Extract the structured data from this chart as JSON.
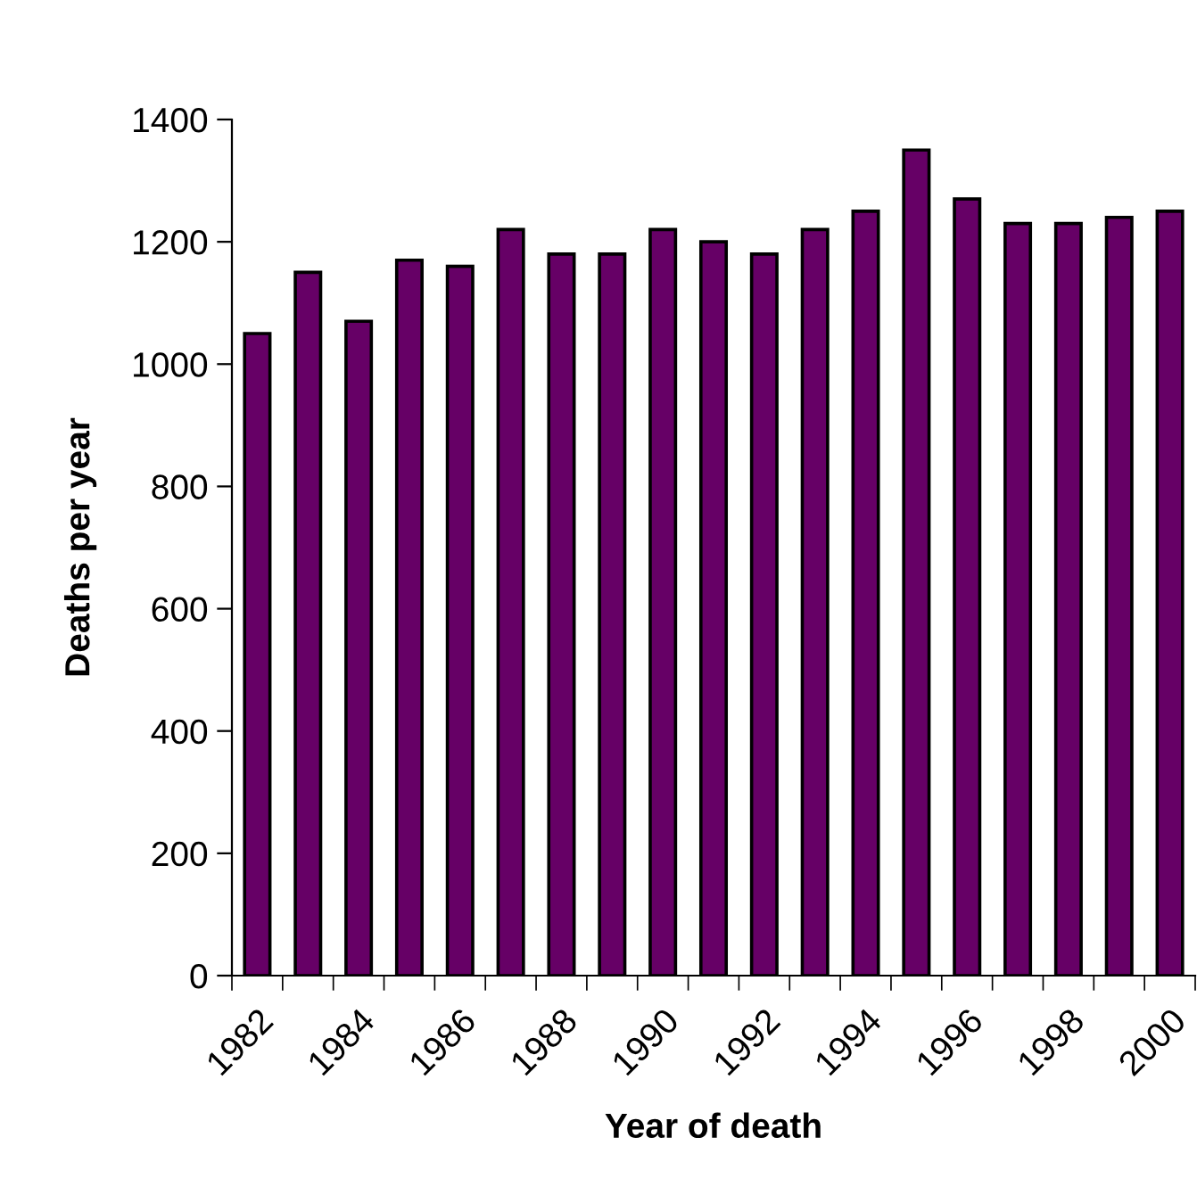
{
  "chart_data": {
    "type": "bar",
    "xlabel": "Year of death",
    "ylabel": "Deaths per year",
    "categories": [
      "1982",
      null,
      "1984",
      null,
      "1986",
      null,
      "1988",
      null,
      "1990",
      null,
      "1992",
      null,
      "1994",
      null,
      "1996",
      null,
      "1998",
      null,
      "2000"
    ],
    "values": [
      1050,
      1150,
      1070,
      1170,
      1160,
      1220,
      1180,
      1180,
      1220,
      1200,
      1180,
      1220,
      1250,
      1350,
      1270,
      1230,
      1230,
      1240,
      1250
    ],
    "color": "#660066",
    "ylim": [
      0,
      1400
    ],
    "yticks": [
      0,
      200,
      400,
      600,
      800,
      1000,
      1200,
      1400
    ],
    "grid": false,
    "legend": false
  }
}
